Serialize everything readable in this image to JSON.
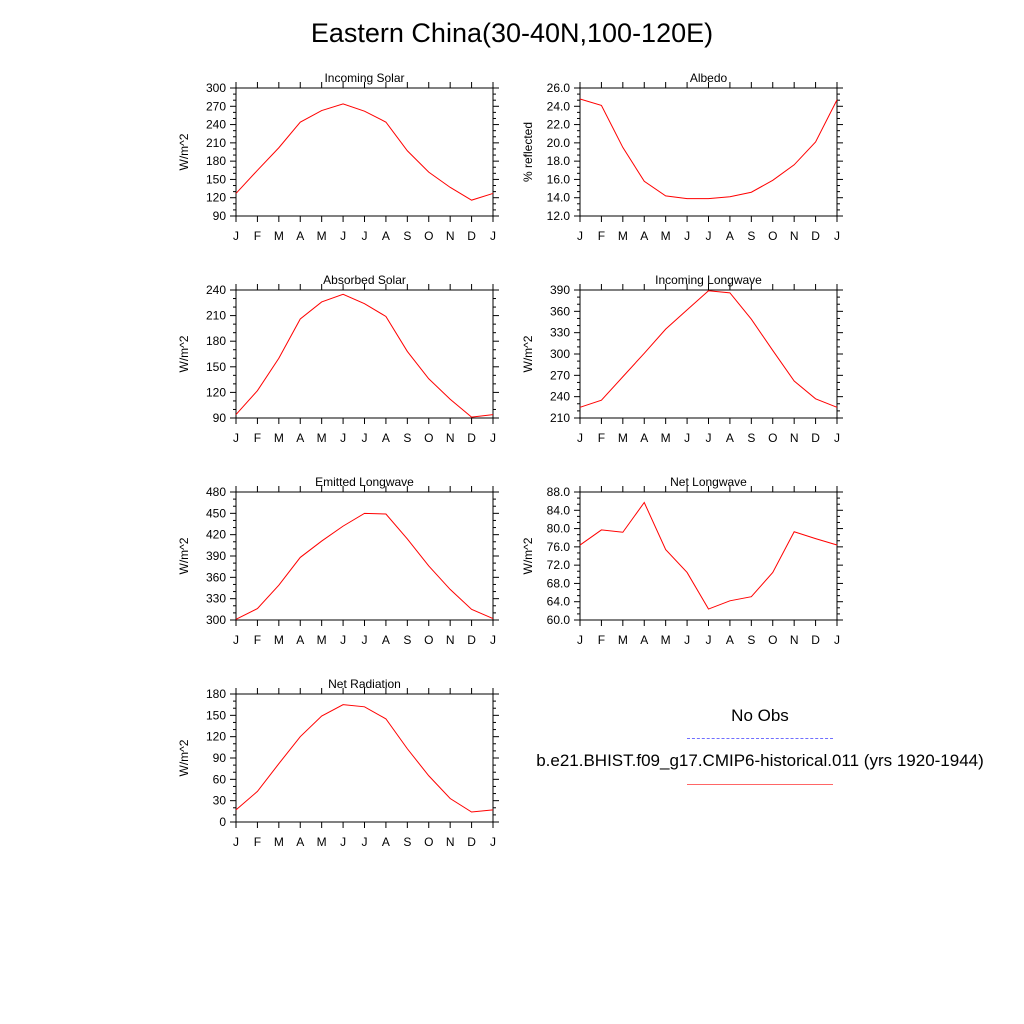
{
  "title": "Eastern China(30-40N,100-120E)",
  "months": [
    "J",
    "F",
    "M",
    "A",
    "M",
    "J",
    "J",
    "A",
    "S",
    "O",
    "N",
    "D",
    "J"
  ],
  "line_color": "#ff0000",
  "obs_line_color": "#0000ff",
  "legend": {
    "obs_label": "No Obs",
    "model_label": "b.e21.BHIST.f09_g17.CMIP6-historical.011 (yrs 1920-1944)"
  },
  "chart_data": [
    {
      "type": "line",
      "title": "Incoming Solar",
      "ylabel": "W/m^2",
      "ylim": [
        90,
        300
      ],
      "yticks": [
        "90",
        "120",
        "150",
        "180",
        "210",
        "240",
        "270",
        "300"
      ],
      "series": [
        {
          "values": [
            127,
            165,
            202,
            244,
            263,
            274,
            262,
            244,
            197,
            162,
            137,
            116,
            127
          ]
        }
      ]
    },
    {
      "type": "line",
      "title": "Albedo",
      "ylabel": "% reflected",
      "ylim": [
        12,
        26
      ],
      "yticks": [
        "12.0",
        "14.0",
        "16.0",
        "18.0",
        "20.0",
        "22.0",
        "24.0",
        "26.0"
      ],
      "series": [
        {
          "values": [
            24.8,
            24.1,
            19.5,
            15.8,
            14.2,
            13.9,
            13.9,
            14.1,
            14.6,
            15.9,
            17.6,
            20.1,
            24.7
          ]
        }
      ]
    },
    {
      "type": "line",
      "title": "Absorbed Solar",
      "ylabel": "W/m^2",
      "ylim": [
        90,
        240
      ],
      "yticks": [
        "90",
        "120",
        "150",
        "180",
        "210",
        "240"
      ],
      "series": [
        {
          "values": [
            94,
            122,
            160,
            206,
            226,
            235,
            224,
            209,
            168,
            136,
            112,
            91,
            94
          ]
        }
      ]
    },
    {
      "type": "line",
      "title": "Incoming Longwave",
      "ylabel": "W/m^2",
      "ylim": [
        210,
        390
      ],
      "yticks": [
        "210",
        "240",
        "270",
        "300",
        "330",
        "360",
        "390"
      ],
      "series": [
        {
          "values": [
            225,
            235,
            268,
            301,
            335,
            362,
            389,
            386,
            349,
            305,
            262,
            237,
            225
          ]
        }
      ]
    },
    {
      "type": "line",
      "title": "Emitted Longwave",
      "ylabel": "W/m^2",
      "ylim": [
        300,
        480
      ],
      "yticks": [
        "300",
        "330",
        "360",
        "390",
        "420",
        "450",
        "480"
      ],
      "series": [
        {
          "values": [
            301,
            316,
            349,
            388,
            411,
            432,
            450,
            449,
            414,
            376,
            343,
            315,
            302
          ]
        }
      ]
    },
    {
      "type": "line",
      "title": "Net Longwave",
      "ylabel": "W/m^2",
      "ylim": [
        60,
        88
      ],
      "yticks": [
        "60.0",
        "64.0",
        "68.0",
        "72.0",
        "76.0",
        "80.0",
        "84.0",
        "88.0"
      ],
      "series": [
        {
          "values": [
            76.4,
            79.7,
            79.2,
            85.7,
            75.4,
            70.4,
            62.4,
            64.2,
            65.1,
            70.4,
            79.3,
            77.8,
            76.4
          ]
        }
      ]
    },
    {
      "type": "line",
      "title": "Net Radiation",
      "ylabel": "W/m^2",
      "ylim": [
        0,
        180
      ],
      "yticks": [
        "0",
        "30",
        "60",
        "90",
        "120",
        "150",
        "180"
      ],
      "series": [
        {
          "values": [
            17,
            43,
            82,
            120,
            149,
            165,
            162,
            145,
            103,
            65,
            33,
            14,
            17
          ]
        }
      ]
    }
  ]
}
